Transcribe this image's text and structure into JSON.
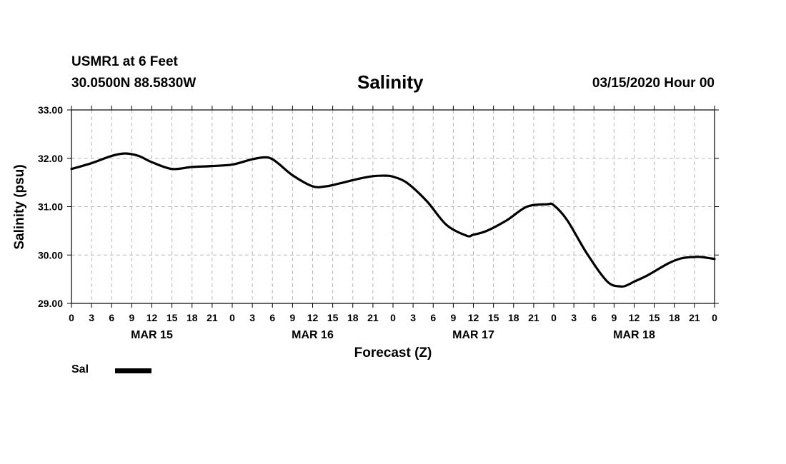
{
  "header": {
    "station": "USMR1 at 6 Feet",
    "coords": "30.0500N 88.5830W",
    "title": "Salinity",
    "timestamp": "03/15/2020 Hour 00"
  },
  "legend": {
    "label": "Sal",
    "color": "#000000"
  },
  "chart_data": {
    "type": "line",
    "title": "Salinity",
    "xlabel": "Forecast (Z)",
    "ylabel": "Salinity (psu)",
    "ylim": [
      29.0,
      33.0
    ],
    "xlim": [
      0,
      96
    ],
    "yticks": [
      "29.00",
      "30.00",
      "31.00",
      "32.00",
      "33.00"
    ],
    "xticks": [
      "0",
      "3",
      "6",
      "9",
      "12",
      "15",
      "18",
      "21",
      "0",
      "3",
      "6",
      "9",
      "12",
      "15",
      "18",
      "21",
      "0",
      "3",
      "6",
      "9",
      "12",
      "15",
      "18",
      "21",
      "0",
      "3",
      "6",
      "9",
      "12",
      "15",
      "18",
      "21",
      "0"
    ],
    "dates": [
      {
        "label": "MAR 15",
        "hour": 12
      },
      {
        "label": "MAR 16",
        "hour": 36
      },
      {
        "label": "MAR 17",
        "hour": 60
      },
      {
        "label": "MAR 18",
        "hour": 84
      }
    ],
    "grid": true,
    "series": [
      {
        "name": "Sal",
        "x": [
          0,
          3,
          6,
          8,
          10,
          12,
          15,
          18,
          21,
          24,
          27,
          29,
          30,
          31,
          33,
          36,
          38,
          40,
          43,
          45,
          47,
          48,
          50,
          53,
          56,
          59,
          60,
          62,
          65,
          68,
          71,
          72,
          74,
          77,
          80,
          82,
          83,
          84,
          86,
          89,
          91,
          93,
          94,
          95,
          96
        ],
        "values": [
          31.78,
          31.9,
          32.05,
          32.1,
          32.05,
          31.92,
          31.78,
          31.82,
          31.84,
          31.87,
          31.98,
          32.02,
          31.98,
          31.88,
          31.65,
          31.42,
          31.42,
          31.48,
          31.58,
          31.63,
          31.64,
          31.62,
          31.5,
          31.12,
          30.62,
          30.4,
          30.42,
          30.5,
          30.72,
          31.0,
          31.05,
          31.03,
          30.72,
          30.02,
          29.45,
          29.35,
          29.38,
          29.45,
          29.58,
          29.82,
          29.93,
          29.96,
          29.96,
          29.94,
          29.92
        ]
      }
    ]
  }
}
